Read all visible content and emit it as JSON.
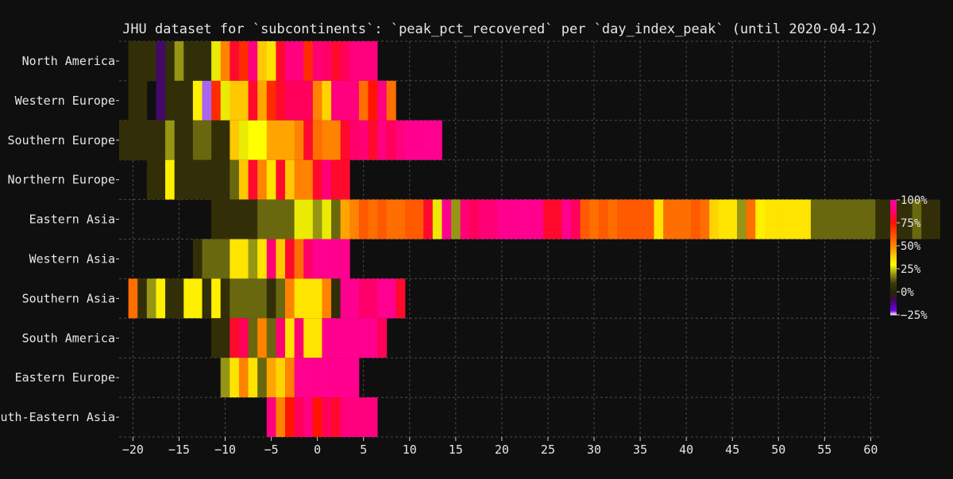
{
  "chart_data": {
    "type": "heatmap",
    "title": "JHU dataset for `subcontinents`: `peak_pct_recovered` per `day_index_peak` (until 2020-04-12)",
    "xlabel": "",
    "ylabel": "",
    "xlim": [
      -21.5,
      61
    ],
    "x_ticks": [
      -20,
      -15,
      -10,
      -5,
      0,
      5,
      10,
      15,
      20,
      25,
      30,
      35,
      40,
      45,
      50,
      55,
      60
    ],
    "grid": true,
    "categories": [
      "North America",
      "Western Europe",
      "Southern Europe",
      "Northern Europe",
      "Eastern Asia",
      "Western Asia",
      "Southern Asia",
      "South America",
      "Eastern Europe",
      "South-Eastern Asia"
    ],
    "colorbar": {
      "range": [
        -25,
        100
      ],
      "ticks": [
        100,
        75,
        50,
        25,
        0,
        -25
      ],
      "tick_labels": [
        "100%",
        "75%",
        "50%",
        "25%",
        "0%",
        "-25%"
      ]
    },
    "rows": [
      {
        "name": "North America",
        "start": -20,
        "values": [
          5,
          5,
          5,
          -10,
          5,
          20,
          5,
          5,
          5,
          28,
          50,
          80,
          70,
          92,
          40,
          35,
          80,
          92,
          92,
          70,
          90,
          88,
          80,
          85,
          92,
          92,
          92
        ]
      },
      {
        "name": "Western Europe",
        "start": -20,
        "values": [
          5,
          5,
          null,
          -10,
          5,
          5,
          5,
          33,
          -22,
          70,
          28,
          40,
          40,
          80,
          45,
          70,
          80,
          85,
          85,
          85,
          50,
          38,
          92,
          92,
          92,
          55,
          75,
          92,
          55
        ]
      },
      {
        "name": "Southern Europe",
        "start": -21,
        "values": [
          5,
          5,
          5,
          5,
          5,
          20,
          5,
          5,
          15,
          15,
          5,
          5,
          40,
          28,
          30,
          30,
          45,
          45,
          45,
          50,
          80,
          55,
          50,
          50,
          80,
          88,
          90,
          80,
          92,
          85,
          92,
          95,
          95,
          95,
          95
        ]
      },
      {
        "name": "Northern Europe",
        "start": -18,
        "values": [
          5,
          5,
          33,
          5,
          5,
          5,
          5,
          5,
          5,
          15,
          40,
          80,
          50,
          35,
          80,
          40,
          50,
          50,
          80,
          90,
          80,
          80
        ]
      },
      {
        "name": "Eastern Asia",
        "start": -11,
        "values": [
          5,
          5,
          5,
          5,
          5,
          15,
          15,
          15,
          15,
          28,
          28,
          20,
          28,
          15,
          45,
          50,
          60,
          55,
          60,
          55,
          55,
          60,
          60,
          80,
          28,
          95,
          20,
          90,
          85,
          90,
          90,
          95,
          95,
          95,
          95,
          95,
          80,
          80,
          95,
          85,
          60,
          55,
          60,
          55,
          60,
          60,
          60,
          60,
          35,
          55,
          55,
          55,
          60,
          55,
          38,
          35,
          35,
          20,
          55,
          33,
          35,
          35,
          35,
          35,
          35,
          15,
          15,
          15,
          15,
          15,
          15,
          15,
          5,
          5,
          5,
          5,
          15,
          5,
          5
        ]
      },
      {
        "name": "Western Asia",
        "start": -13,
        "values": [
          5,
          15,
          15,
          15,
          35,
          35,
          20,
          35,
          90,
          40,
          80,
          55,
          88,
          95,
          95,
          95,
          95
        ]
      },
      {
        "name": "Southern Asia",
        "start": -20,
        "values": [
          55,
          5,
          20,
          33,
          5,
          5,
          33,
          33,
          5,
          33,
          5,
          15,
          15,
          15,
          15,
          5,
          15,
          50,
          35,
          35,
          35,
          50,
          5,
          95,
          95,
          88,
          88,
          95,
          95,
          80
        ]
      },
      {
        "name": "South America",
        "start": -11,
        "values": [
          5,
          5,
          80,
          85,
          15,
          50,
          15,
          90,
          35,
          90,
          35,
          35,
          95,
          95,
          95,
          95,
          95,
          95,
          85
        ]
      },
      {
        "name": "Eastern Europe",
        "start": -10,
        "values": [
          20,
          35,
          50,
          35,
          15,
          45,
          38,
          50,
          95,
          95,
          95,
          95,
          95,
          95,
          95
        ]
      },
      {
        "name": "South-Eastern Asia",
        "start": -5,
        "values": [
          92,
          50,
          75,
          85,
          92,
          75,
          85,
          80,
          92,
          92,
          92,
          92
        ]
      }
    ]
  }
}
